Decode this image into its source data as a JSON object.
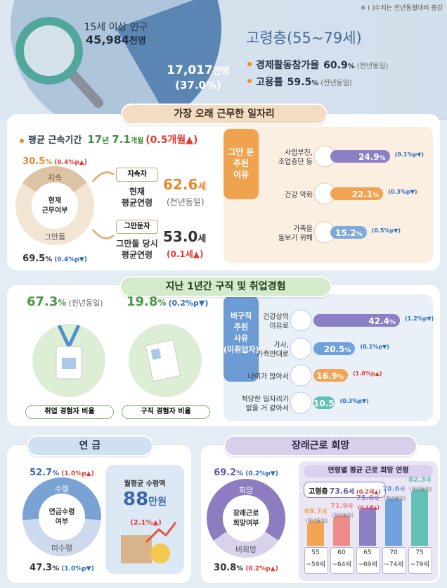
{
  "note": "※ ( )수치는 전년동월대비 증감",
  "top": {
    "population_label": "15세 이상 인구",
    "population_value": "45,984",
    "population_unit": "천명",
    "elderly_value": "17,017",
    "elderly_unit": "천명",
    "elderly_share": "(37.0%)",
    "title": "고령층(55~79세)",
    "stats": [
      {
        "label": "경제활동참가율",
        "value": 60.9,
        "unit": "%",
        "change": "(전년동일)"
      },
      {
        "label": "고용률",
        "value": 59.5,
        "unit": "%",
        "change": "(전년동일)"
      }
    ]
  },
  "longest_job": {
    "title": "가장 오래 근무한 일자리",
    "tenure_label": "평균 근속기간",
    "years": 17,
    "years_unit": "년",
    "months": 7.1,
    "months_unit": "개월",
    "tenure_change": "(0.5개월▲)",
    "status": {
      "center": [
        "현재",
        "근무여부"
      ],
      "segments": [
        {
          "label": "지속",
          "value": 30.5,
          "unit": "%",
          "change": "(0.4%p▲)",
          "color": "#dcc3a3"
        },
        {
          "label": "그만둠",
          "value": 69.5,
          "unit": "%",
          "change": "(0.4%p▼)",
          "color": "#f3e5d3"
        }
      ]
    },
    "groups": [
      {
        "tag": "지속자",
        "lines": [
          "현재",
          "평균연령"
        ],
        "age": 62.6,
        "unit": "세",
        "change": "(전년동일)"
      },
      {
        "tag": "그만둔자",
        "lines": [
          "그만둘 당시",
          "평균연령"
        ],
        "age": "53.0",
        "unit": "세",
        "change": "(0.1세▲)"
      }
    ],
    "reasons": {
      "title": [
        "그만 둔",
        "주된",
        "이유"
      ],
      "items": [
        {
          "label": [
            "사업부진,",
            "조업중단 등"
          ],
          "value": 24.9,
          "unit": "%",
          "change": "(0.1%p▼)",
          "color": "#8b7fc6"
        },
        {
          "label": [
            "건강 악화"
          ],
          "value": 22.1,
          "unit": "%",
          "change": "(0.3%p▼)",
          "color": "#f2a454"
        },
        {
          "label": [
            "가족을",
            "돌보기 위해"
          ],
          "value": 15.2,
          "unit": "%",
          "change": "(0.5%p▼)",
          "color": "#7fa9d8"
        }
      ]
    }
  },
  "job_search": {
    "title": "지난 1년간 구직 및 취업경험",
    "stats": [
      {
        "value": 67.3,
        "unit": "%",
        "change": "(전년동일)",
        "label": "취업 경험자 비율"
      },
      {
        "value": 19.8,
        "unit": "%",
        "change": "(0.2%p▼)",
        "label": "구직 경험자 비율"
      }
    ],
    "reasons": {
      "title": [
        "비구직",
        "주된",
        "사유",
        "(미취업자)"
      ],
      "items": [
        {
          "label": [
            "건강상의",
            "이유로"
          ],
          "value": 42.4,
          "unit": "%",
          "change": "(1.2%p▼)",
          "color": "#8b7fc6"
        },
        {
          "label": [
            "가사,",
            "가족반대로"
          ],
          "value": 20.5,
          "unit": "%",
          "change": "(0.1%p▼)",
          "color": "#6fa2dd"
        },
        {
          "label": [
            "나이가 많아서"
          ],
          "value": 16.9,
          "unit": "%",
          "change": "(1.0%p▲)",
          "color": "#f2a454"
        },
        {
          "label": [
            "적당한 일자리가",
            "없을 거 같아서"
          ],
          "value": 10.5,
          "unit": "%",
          "change": "(0.3%p▼)",
          "color": "#62c1b5"
        }
      ]
    }
  },
  "pension": {
    "title": "연 금",
    "center": [
      "연금수령",
      "여부"
    ],
    "segments": [
      {
        "label": "수령",
        "value": 52.7,
        "unit": "%",
        "change": "(1.0%p▲)",
        "color": "#7aa3d4"
      },
      {
        "label": "미수령",
        "value": 47.3,
        "unit": "%",
        "change": "(1.0%p▼)",
        "color": "#cdd9ec"
      }
    ],
    "monthly_label": "월평균 수령액",
    "monthly_value": 88,
    "monthly_unit": "만원",
    "monthly_change": "(2.1%▲)"
  },
  "future_work": {
    "title": "장래근로 희망",
    "center": [
      "장래근로",
      "희망여부"
    ],
    "segments": [
      {
        "label": "희망",
        "value": 69.2,
        "unit": "%",
        "change": "(0.2%p▼)",
        "color": "#8d7cc0"
      },
      {
        "label": "비희망",
        "value": 30.8,
        "unit": "%",
        "change": "(0.2%p▲)",
        "color": "#d9d2ea"
      }
    ],
    "age_chart": {
      "title": "연령별 평균 근로 희망 연령",
      "overall_label": "고령층",
      "overall_value": 73.6,
      "overall_unit": "세",
      "overall_change": "(0.2세▲)",
      "bars": [
        {
          "group": [
            "55",
            "~59세"
          ],
          "value": 69.7,
          "unit": "세",
          "change": "(전년동일)",
          "color": "#f2a454"
        },
        {
          "group": [
            "60",
            "~64세"
          ],
          "value": 71.9,
          "unit": "세",
          "change": "(전년동일)",
          "color": "#ee8a8a"
        },
        {
          "group": [
            "65",
            "~69세"
          ],
          "value": "75.0",
          "unit": "세",
          "change": "(0.1세▲)",
          "color": "#8c7fc6"
        },
        {
          "group": [
            "70",
            "~74세"
          ],
          "value": 78.6,
          "unit": "세",
          "change": "(전년동일)",
          "color": "#6fa2dd"
        },
        {
          "group": [
            "75",
            "~79세"
          ],
          "value": 82.3,
          "unit": "세",
          "change": "(전년동일)",
          "color": "#62c1b5"
        }
      ]
    }
  }
}
